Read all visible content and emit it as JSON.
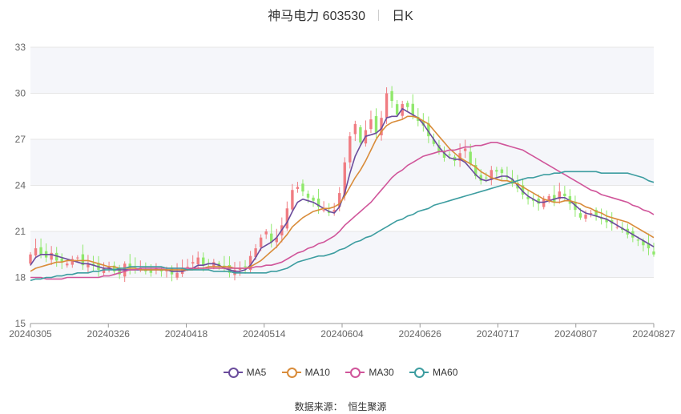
{
  "header": {
    "stock": "神马电力 603530",
    "period": "日K"
  },
  "source": {
    "label": "数据来源：",
    "value": "恒生聚源"
  },
  "chart_data": {
    "type": "candlestick",
    "title": "神马电力 603530",
    "ylim": [
      15,
      33
    ],
    "yticks": [
      15,
      18,
      21,
      24,
      27,
      30,
      33
    ],
    "x_tick_labels": [
      "20240305",
      "20240326",
      "20240418",
      "20240514",
      "20240604",
      "20240626",
      "20240717",
      "20240807",
      "20240827"
    ],
    "colors": {
      "up": "#f07c82",
      "down": "#90e86c",
      "grid": "#e6e6e6",
      "band": "#f5f6fa"
    },
    "closes": [
      19.5,
      19.9,
      19.5,
      19.3,
      19.6,
      19.1,
      19.0,
      18.9,
      19.2,
      19.3,
      18.8,
      18.9,
      18.8,
      18.5,
      18.6,
      18.7,
      18.4,
      18.2,
      18.9,
      18.6,
      18.7,
      18.6,
      18.4,
      18.3,
      18.6,
      18.4,
      18.5,
      18.2,
      18.3,
      18.6,
      18.7,
      19.0,
      19.3,
      18.8,
      18.9,
      19.0,
      18.7,
      18.6,
      18.3,
      18.5,
      18.6,
      18.7,
      19.4,
      19.9,
      20.6,
      21.0,
      20.3,
      20.6,
      21.4,
      22.5,
      23.7,
      23.9,
      23.6,
      23.2,
      23.0,
      22.6,
      22.4,
      22.2,
      22.4,
      23.5,
      25.5,
      27.2,
      28.0,
      26.8,
      27.6,
      28.3,
      27.4,
      28.4,
      30.0,
      29.5,
      28.6,
      29.3,
      29.1,
      28.6,
      28.2,
      27.9,
      27.2,
      26.7,
      26.2,
      25.8,
      26.0,
      25.6,
      26.1,
      26.4,
      25.4,
      24.6,
      24.3,
      24.5,
      25.0,
      24.9,
      24.8,
      24.5,
      24.1,
      23.8,
      23.4,
      23.1,
      23.0,
      22.8,
      23.1,
      23.3,
      22.9,
      23.6,
      23.3,
      22.8,
      22.4,
      21.9,
      22.1,
      22.2,
      22.0,
      21.8,
      21.6,
      21.5,
      21.3,
      21.1,
      20.8,
      20.6,
      20.4,
      20.1,
      19.9,
      19.5
    ],
    "series": [
      {
        "name": "MA5",
        "color": "#6a4c9c",
        "values": [
          18.8,
          19.3,
          19.5,
          19.5,
          19.5,
          19.4,
          19.3,
          19.2,
          19.1,
          19.0,
          18.9,
          18.9,
          18.8,
          18.7,
          18.6,
          18.6,
          18.5,
          18.5,
          18.5,
          18.5,
          18.5,
          18.5,
          18.5,
          18.5,
          18.5,
          18.5,
          18.5,
          18.4,
          18.4,
          18.4,
          18.5,
          18.6,
          18.8,
          18.8,
          18.9,
          18.9,
          18.8,
          18.6,
          18.5,
          18.4,
          18.4,
          18.5,
          18.8,
          19.3,
          19.9,
          20.1,
          20.3,
          20.6,
          21.1,
          21.6,
          22.3,
          22.9,
          23.1,
          23.0,
          22.9,
          22.7,
          22.5,
          22.3,
          22.2,
          22.6,
          23.5,
          24.8,
          25.9,
          26.6,
          27.2,
          27.3,
          27.4,
          27.7,
          28.4,
          28.5,
          28.5,
          29.0,
          28.8,
          28.6,
          28.4,
          28.0,
          27.5,
          27.0,
          26.5,
          26.1,
          25.8,
          25.7,
          25.7,
          25.5,
          25.1,
          24.7,
          24.4,
          24.3,
          24.4,
          24.5,
          24.6,
          24.6,
          24.4,
          24.0,
          23.6,
          23.3,
          23.1,
          22.9,
          22.9,
          23.0,
          23.1,
          23.2,
          23.2,
          23.0,
          22.7,
          22.4,
          22.2,
          22.1,
          22.0,
          21.9,
          21.8,
          21.6,
          21.4,
          21.2,
          21.0,
          20.8,
          20.6,
          20.4,
          20.2,
          20.0
        ]
      },
      {
        "name": "MA10",
        "color": "#d98c3a",
        "values": [
          18.4,
          18.6,
          18.7,
          18.8,
          18.9,
          19.0,
          19.0,
          19.1,
          19.1,
          19.1,
          19.1,
          19.1,
          19.0,
          18.9,
          18.8,
          18.7,
          18.7,
          18.6,
          18.6,
          18.6,
          18.6,
          18.5,
          18.5,
          18.5,
          18.5,
          18.5,
          18.5,
          18.5,
          18.5,
          18.5,
          18.5,
          18.5,
          18.6,
          18.6,
          18.7,
          18.7,
          18.7,
          18.7,
          18.7,
          18.6,
          18.6,
          18.6,
          18.7,
          18.9,
          19.1,
          19.4,
          19.7,
          20.0,
          20.4,
          20.8,
          21.3,
          21.6,
          21.9,
          22.1,
          22.3,
          22.4,
          22.5,
          22.5,
          22.6,
          22.8,
          23.3,
          23.9,
          24.5,
          25.0,
          25.6,
          26.3,
          27.0,
          27.5,
          27.9,
          28.1,
          28.2,
          28.3,
          28.5,
          28.5,
          28.4,
          28.2,
          28.0,
          27.6,
          27.2,
          26.8,
          26.4,
          26.1,
          25.8,
          25.6,
          25.4,
          25.2,
          24.9,
          24.7,
          24.5,
          24.4,
          24.3,
          24.3,
          24.2,
          24.1,
          23.9,
          23.7,
          23.5,
          23.3,
          23.1,
          23.0,
          22.9,
          22.9,
          23.0,
          23.0,
          22.9,
          22.8,
          22.6,
          22.5,
          22.3,
          22.2,
          22.0,
          21.9,
          21.8,
          21.7,
          21.6,
          21.4,
          21.2,
          21.0,
          20.8,
          20.6
        ]
      },
      {
        "name": "MA30",
        "color": "#d0559a",
        "values": [
          18.0,
          18.0,
          18.0,
          17.9,
          17.9,
          17.9,
          17.9,
          18.0,
          18.0,
          18.0,
          18.0,
          18.0,
          18.0,
          18.0,
          18.1,
          18.1,
          18.2,
          18.3,
          18.4,
          18.5,
          18.5,
          18.6,
          18.6,
          18.6,
          18.6,
          18.6,
          18.6,
          18.6,
          18.6,
          18.6,
          18.6,
          18.6,
          18.6,
          18.6,
          18.6,
          18.6,
          18.6,
          18.6,
          18.6,
          18.6,
          18.6,
          18.6,
          18.6,
          18.7,
          18.7,
          18.8,
          18.8,
          18.9,
          19.0,
          19.2,
          19.4,
          19.6,
          19.7,
          19.9,
          20.0,
          20.2,
          20.3,
          20.5,
          20.7,
          21.0,
          21.4,
          21.7,
          22.0,
          22.3,
          22.6,
          22.9,
          23.3,
          23.7,
          24.1,
          24.5,
          24.8,
          25.0,
          25.3,
          25.5,
          25.7,
          25.9,
          26.0,
          26.1,
          26.2,
          26.2,
          26.3,
          26.3,
          26.4,
          26.5,
          26.5,
          26.6,
          26.6,
          26.7,
          26.8,
          26.8,
          26.7,
          26.6,
          26.5,
          26.4,
          26.3,
          26.1,
          25.9,
          25.7,
          25.5,
          25.3,
          25.1,
          24.9,
          24.7,
          24.5,
          24.3,
          24.1,
          23.9,
          23.7,
          23.6,
          23.4,
          23.3,
          23.2,
          23.1,
          23.0,
          22.9,
          22.7,
          22.6,
          22.4,
          22.3,
          22.1
        ]
      },
      {
        "name": "MA60",
        "color": "#3d9da0",
        "values": [
          17.8,
          17.9,
          17.9,
          18.0,
          18.0,
          18.1,
          18.1,
          18.2,
          18.2,
          18.3,
          18.3,
          18.3,
          18.4,
          18.4,
          18.5,
          18.5,
          18.5,
          18.6,
          18.6,
          18.7,
          18.7,
          18.7,
          18.7,
          18.7,
          18.7,
          18.7,
          18.6,
          18.6,
          18.6,
          18.6,
          18.5,
          18.5,
          18.5,
          18.5,
          18.5,
          18.4,
          18.4,
          18.4,
          18.4,
          18.3,
          18.3,
          18.3,
          18.3,
          18.3,
          18.3,
          18.3,
          18.4,
          18.4,
          18.5,
          18.6,
          18.8,
          19.0,
          19.1,
          19.2,
          19.3,
          19.4,
          19.4,
          19.5,
          19.6,
          19.8,
          19.9,
          20.1,
          20.3,
          20.4,
          20.6,
          20.7,
          20.9,
          21.1,
          21.3,
          21.5,
          21.7,
          21.8,
          22.0,
          22.1,
          22.3,
          22.4,
          22.5,
          22.7,
          22.8,
          22.9,
          23.0,
          23.1,
          23.2,
          23.3,
          23.4,
          23.5,
          23.6,
          23.7,
          23.8,
          23.9,
          24.0,
          24.1,
          24.2,
          24.3,
          24.4,
          24.5,
          24.5,
          24.6,
          24.7,
          24.7,
          24.8,
          24.8,
          24.9,
          24.9,
          24.9,
          24.9,
          24.9,
          24.9,
          24.9,
          24.8,
          24.8,
          24.8,
          24.8,
          24.8,
          24.8,
          24.7,
          24.6,
          24.5,
          24.3,
          24.2
        ]
      }
    ]
  }
}
